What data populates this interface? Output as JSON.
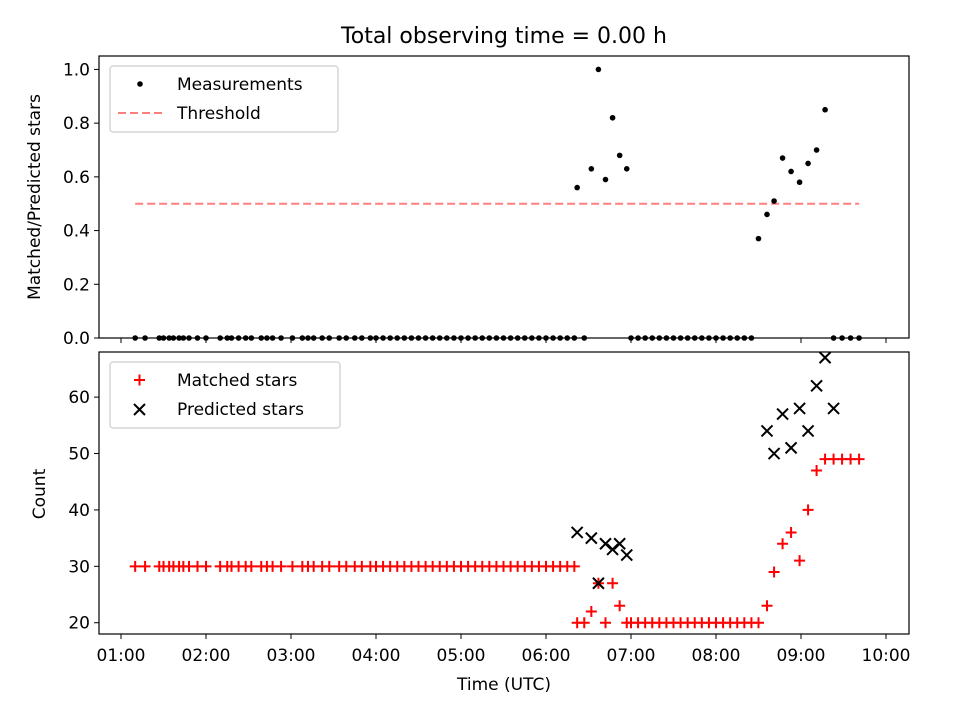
{
  "figure_title": "Total observing time = 0.00 h",
  "chart_data": [
    {
      "type": "scatter",
      "title": "Total observing time = 0.00 h",
      "xlabel": "",
      "ylabel": "Matched/Predicted stars",
      "xlim": [
        "01:00",
        "10:00"
      ],
      "ylim": [
        0,
        1.05
      ],
      "y_ticks": [
        "0.0",
        "0.2",
        "0.4",
        "0.6",
        "0.8",
        "1.0"
      ],
      "grid": false,
      "legend": "upper-left",
      "series": [
        {
          "name": "Measurements",
          "marker": "dot",
          "color": "#000000",
          "x": [
            "01:10",
            "01:17",
            "01:27",
            "01:30",
            "01:34",
            "01:37",
            "01:41",
            "01:44",
            "01:48",
            "01:54",
            "02:00",
            "02:10",
            "02:15",
            "02:18",
            "02:23",
            "02:28",
            "02:32",
            "02:39",
            "02:43",
            "02:47",
            "02:53",
            "03:01",
            "03:08",
            "03:12",
            "03:16",
            "03:22",
            "03:27",
            "03:34",
            "03:39",
            "03:45",
            "03:50",
            "03:56",
            "04:00",
            "04:05",
            "04:10",
            "04:15",
            "04:20",
            "04:25",
            "04:30",
            "04:35",
            "04:40",
            "04:45",
            "04:50",
            "04:55",
            "05:00",
            "05:05",
            "05:10",
            "05:15",
            "05:20",
            "05:25",
            "05:30",
            "05:35",
            "05:40",
            "05:45",
            "05:50",
            "05:55",
            "06:00",
            "06:05",
            "06:10",
            "06:15",
            "06:20",
            "06:22",
            "06:27",
            "06:32",
            "06:37",
            "06:42",
            "06:47",
            "06:52",
            "06:57",
            "07:00",
            "07:05",
            "07:10",
            "07:15",
            "07:20",
            "07:25",
            "07:30",
            "07:35",
            "07:40",
            "07:45",
            "07:50",
            "07:55",
            "08:00",
            "08:05",
            "08:10",
            "08:15",
            "08:20",
            "08:25",
            "08:30",
            "08:36",
            "08:41",
            "08:47",
            "08:53",
            "08:59",
            "09:05",
            "09:11",
            "09:17",
            "09:23",
            "09:29",
            "09:35",
            "09:41"
          ],
          "y": [
            0,
            0,
            0,
            0,
            0,
            0,
            0,
            0,
            0,
            0,
            0,
            0,
            0,
            0,
            0,
            0,
            0,
            0,
            0,
            0,
            0,
            0,
            0,
            0,
            0,
            0,
            0,
            0,
            0,
            0,
            0,
            0,
            0,
            0,
            0,
            0,
            0,
            0,
            0,
            0,
            0,
            0,
            0,
            0,
            0,
            0,
            0,
            0,
            0,
            0,
            0,
            0,
            0,
            0,
            0,
            0,
            0,
            0,
            0,
            0,
            0,
            0.56,
            0,
            0.63,
            1.0,
            0.59,
            0.82,
            0.68,
            0.63,
            0,
            0,
            0,
            0,
            0,
            0,
            0,
            0,
            0,
            0,
            0,
            0,
            0,
            0,
            0,
            0,
            0,
            0,
            0.37,
            0.46,
            0.51,
            0.67,
            0.62,
            0.58,
            0.65,
            0.7,
            0.85,
            0,
            0,
            0,
            0
          ]
        },
        {
          "name": "Threshold",
          "line_style": "dashed",
          "color": "#ff7f7f",
          "x": [
            "01:10",
            "09:41"
          ],
          "y": [
            0.5,
            0.5
          ]
        }
      ]
    },
    {
      "type": "scatter",
      "title": "",
      "xlabel": "Time (UTC)",
      "ylabel": "Count",
      "xlim": [
        "01:00",
        "10:00"
      ],
      "x_ticks": [
        "01:00",
        "02:00",
        "03:00",
        "04:00",
        "05:00",
        "06:00",
        "07:00",
        "08:00",
        "09:00",
        "10:00"
      ],
      "ylim": [
        18,
        68
      ],
      "y_ticks": [
        "20",
        "30",
        "40",
        "50",
        "60"
      ],
      "grid": false,
      "legend": "upper-left",
      "series": [
        {
          "name": "Matched stars",
          "marker": "plus",
          "color": "#ff0000",
          "x": [
            "01:10",
            "01:17",
            "01:27",
            "01:30",
            "01:34",
            "01:37",
            "01:41",
            "01:44",
            "01:48",
            "01:54",
            "02:00",
            "02:10",
            "02:15",
            "02:18",
            "02:23",
            "02:28",
            "02:32",
            "02:39",
            "02:43",
            "02:47",
            "02:53",
            "03:01",
            "03:08",
            "03:12",
            "03:16",
            "03:22",
            "03:27",
            "03:34",
            "03:39",
            "03:45",
            "03:50",
            "03:56",
            "04:00",
            "04:05",
            "04:10",
            "04:15",
            "04:20",
            "04:25",
            "04:30",
            "04:35",
            "04:40",
            "04:45",
            "04:50",
            "04:55",
            "05:00",
            "05:05",
            "05:10",
            "05:15",
            "05:20",
            "05:25",
            "05:30",
            "05:35",
            "05:40",
            "05:45",
            "05:50",
            "05:55",
            "06:00",
            "06:05",
            "06:10",
            "06:15",
            "06:20",
            "06:22",
            "06:27",
            "06:32",
            "06:37",
            "06:42",
            "06:47",
            "06:52",
            "06:57",
            "07:00",
            "07:05",
            "07:10",
            "07:15",
            "07:20",
            "07:25",
            "07:30",
            "07:35",
            "07:40",
            "07:45",
            "07:50",
            "07:55",
            "08:00",
            "08:05",
            "08:10",
            "08:15",
            "08:20",
            "08:25",
            "08:30",
            "08:36",
            "08:41",
            "08:47",
            "08:53",
            "08:59",
            "09:05",
            "09:11",
            "09:17",
            "09:23",
            "09:29",
            "09:35",
            "09:41"
          ],
          "y": [
            30,
            30,
            30,
            30,
            30,
            30,
            30,
            30,
            30,
            30,
            30,
            30,
            30,
            30,
            30,
            30,
            30,
            30,
            30,
            30,
            30,
            30,
            30,
            30,
            30,
            30,
            30,
            30,
            30,
            30,
            30,
            30,
            30,
            30,
            30,
            30,
            30,
            30,
            30,
            30,
            30,
            30,
            30,
            30,
            30,
            30,
            30,
            30,
            30,
            30,
            30,
            30,
            30,
            30,
            30,
            30,
            30,
            30,
            30,
            30,
            30,
            20,
            20,
            22,
            27,
            20,
            27,
            23,
            20,
            20,
            20,
            20,
            20,
            20,
            20,
            20,
            20,
            20,
            20,
            20,
            20,
            20,
            20,
            20,
            20,
            20,
            20,
            20,
            23,
            29,
            34,
            36,
            31,
            40,
            47,
            49,
            49,
            49,
            49,
            49
          ]
        },
        {
          "name": "Predicted stars",
          "marker": "x",
          "color": "#000000",
          "x": [
            "06:22",
            "06:32",
            "06:37",
            "06:42",
            "06:47",
            "06:52",
            "06:57",
            "08:36",
            "08:41",
            "08:47",
            "08:53",
            "08:59",
            "09:05",
            "09:11",
            "09:17",
            "09:23"
          ],
          "y": [
            36,
            35,
            27,
            34,
            33,
            34,
            32,
            54,
            50,
            57,
            51,
            58,
            54,
            62,
            67,
            58
          ]
        }
      ]
    }
  ]
}
